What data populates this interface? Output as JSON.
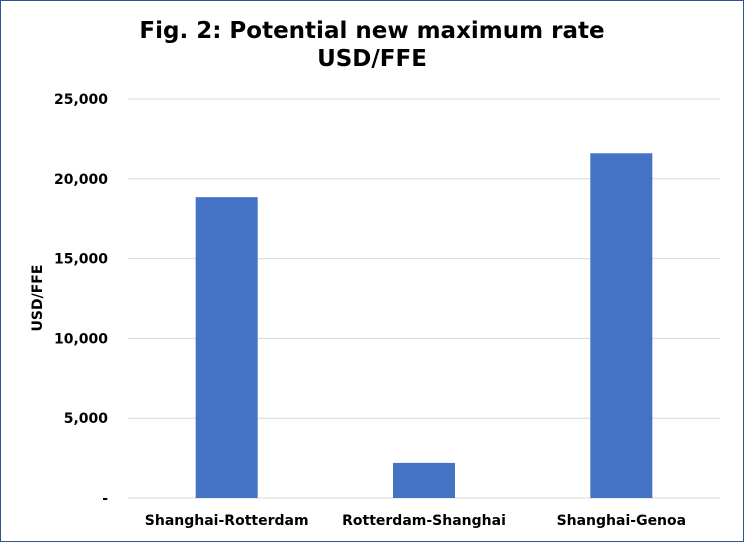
{
  "chart_data": {
    "type": "bar",
    "title": "Fig. 2: Potential new maximum rate",
    "subtitle": "USD/FFE",
    "ylabel": "USD/FFE",
    "xlabel": "",
    "categories": [
      "Shanghai-Rotterdam",
      "Rotterdam-Shanghai",
      "Shanghai-Genoa"
    ],
    "values": [
      18850,
      2200,
      21600
    ],
    "ylim": [
      0,
      25000
    ],
    "yticks": [
      {
        "value": 0,
        "label": "-"
      },
      {
        "value": 5000,
        "label": "5,000"
      },
      {
        "value": 10000,
        "label": "10,000"
      },
      {
        "value": 15000,
        "label": "15,000"
      },
      {
        "value": 20000,
        "label": "20,000"
      },
      {
        "value": 25000,
        "label": "25,000"
      }
    ],
    "grid": true,
    "legend": "none",
    "bar_color": "#4472c4",
    "grid_color": "#d9d9d9",
    "border_color": "#2f5597"
  }
}
